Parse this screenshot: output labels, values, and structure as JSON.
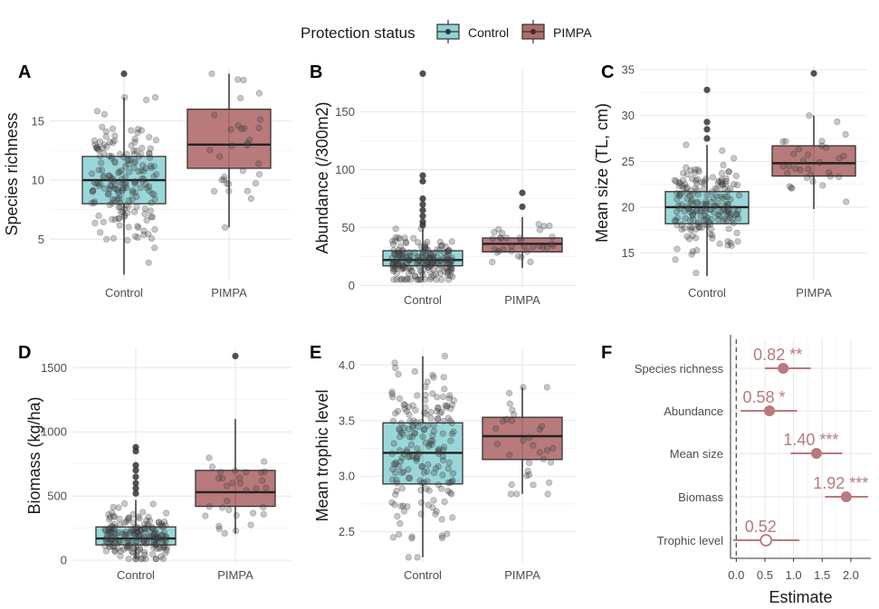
{
  "legend": {
    "title": "Protection status",
    "entries": [
      {
        "label": "Control",
        "color": "#8fd3d6"
      },
      {
        "label": "PIMPA",
        "color": "#b06c6c"
      }
    ]
  },
  "colors": {
    "control": "#8fd3d6",
    "pimpa": "#b06c6c",
    "forest": "#b9797d",
    "point": "#333333"
  },
  "chart_data": [
    {
      "panel": "A",
      "type": "box",
      "ylabel": "Species richness",
      "categories": [
        "Control",
        "PIMPA"
      ],
      "yticks": [
        5,
        10,
        15
      ],
      "ylim": [
        1.5,
        19.5
      ],
      "boxes": [
        {
          "group": "Control",
          "q1": 8,
          "median": 10,
          "q3": 12,
          "whisker_low": 2,
          "whisker_high": 17,
          "outliers": [
            19
          ]
        },
        {
          "group": "PIMPA",
          "q1": 11,
          "median": 13,
          "q3": 16,
          "whisker_low": 6,
          "whisker_high": 19,
          "outliers": []
        }
      ]
    },
    {
      "panel": "B",
      "type": "box",
      "ylabel": "Abundance (/300m2)",
      "categories": [
        "Control",
        "PIMPA"
      ],
      "yticks": [
        0,
        50,
        100,
        150
      ],
      "ylim": [
        -2,
        188
      ],
      "boxes": [
        {
          "group": "Control",
          "q1": 17,
          "median": 22,
          "q3": 30,
          "whisker_low": 5,
          "whisker_high": 49,
          "outliers": [
            183,
            95,
            90,
            75,
            70,
            65,
            60,
            55,
            52
          ]
        },
        {
          "group": "PIMPA",
          "q1": 29,
          "median": 36,
          "q3": 41,
          "whisker_low": 15,
          "whisker_high": 59,
          "outliers": [
            80,
            68
          ]
        }
      ]
    },
    {
      "panel": "C",
      "type": "box",
      "ylabel": "Mean size (TL, cm)",
      "categories": [
        "Control",
        "PIMPA"
      ],
      "yticks": [
        15,
        20,
        25,
        30,
        35
      ],
      "ylim": [
        12,
        35.5
      ],
      "boxes": [
        {
          "group": "Control",
          "q1": 18.2,
          "median": 20,
          "q3": 21.7,
          "whisker_low": 12.5,
          "whisker_high": 26.8,
          "outliers": [
            32.8,
            29.3,
            28.5,
            27.5
          ]
        },
        {
          "group": "PIMPA",
          "q1": 23.4,
          "median": 24.8,
          "q3": 26.7,
          "whisker_low": 19.8,
          "whisker_high": 30,
          "outliers": [
            34.6
          ]
        }
      ]
    },
    {
      "panel": "D",
      "type": "box",
      "ylabel": "Biomass (kg/ha)",
      "categories": [
        "Control",
        "PIMPA"
      ],
      "yticks": [
        0,
        500,
        1000,
        1500
      ],
      "ylim": [
        -20,
        1650
      ],
      "boxes": [
        {
          "group": "Control",
          "q1": 120,
          "median": 170,
          "q3": 260,
          "whisker_low": 10,
          "whisker_high": 470,
          "outliers": [
            880,
            850,
            740,
            700,
            650,
            600,
            560,
            520
          ]
        },
        {
          "group": "PIMPA",
          "q1": 420,
          "median": 530,
          "q3": 700,
          "whisker_low": 210,
          "whisker_high": 1100,
          "outliers": [
            1590
          ]
        }
      ]
    },
    {
      "panel": "E",
      "type": "box",
      "ylabel": "Mean trophic level",
      "categories": [
        "Control",
        "PIMPA"
      ],
      "yticks": [
        2.5,
        3.0,
        3.5,
        4.0
      ],
      "ylim": [
        2.22,
        4.15
      ],
      "boxes": [
        {
          "group": "Control",
          "q1": 2.93,
          "median": 3.21,
          "q3": 3.48,
          "whisker_low": 2.27,
          "whisker_high": 4.08,
          "outliers": []
        },
        {
          "group": "PIMPA",
          "q1": 3.15,
          "median": 3.36,
          "q3": 3.53,
          "whisker_low": 2.84,
          "whisker_high": 3.8,
          "outliers": []
        }
      ]
    },
    {
      "panel": "F",
      "type": "forest",
      "xlabel": "Estimate",
      "xticks": [
        0.0,
        0.5,
        1.0,
        1.5,
        2.0
      ],
      "xlim": [
        -0.1,
        2.35
      ],
      "rows": [
        {
          "label": "Species richness",
          "estimate": 0.82,
          "low": 0.5,
          "high": 1.3,
          "text": "0.82 **",
          "filled": true
        },
        {
          "label": "Abundance",
          "estimate": 0.58,
          "low": 0.08,
          "high": 1.06,
          "text": "0.58 *",
          "filled": true
        },
        {
          "label": "Mean size",
          "estimate": 1.4,
          "low": 0.95,
          "high": 1.85,
          "text": "1.40 ***",
          "filled": true
        },
        {
          "label": "Biomass",
          "estimate": 1.92,
          "low": 1.55,
          "high": 2.3,
          "text": "1.92 ***",
          "filled": true
        },
        {
          "label": "Trophic level",
          "estimate": 0.52,
          "low": -0.05,
          "high": 1.1,
          "text": "0.52",
          "filled": false
        }
      ]
    }
  ]
}
